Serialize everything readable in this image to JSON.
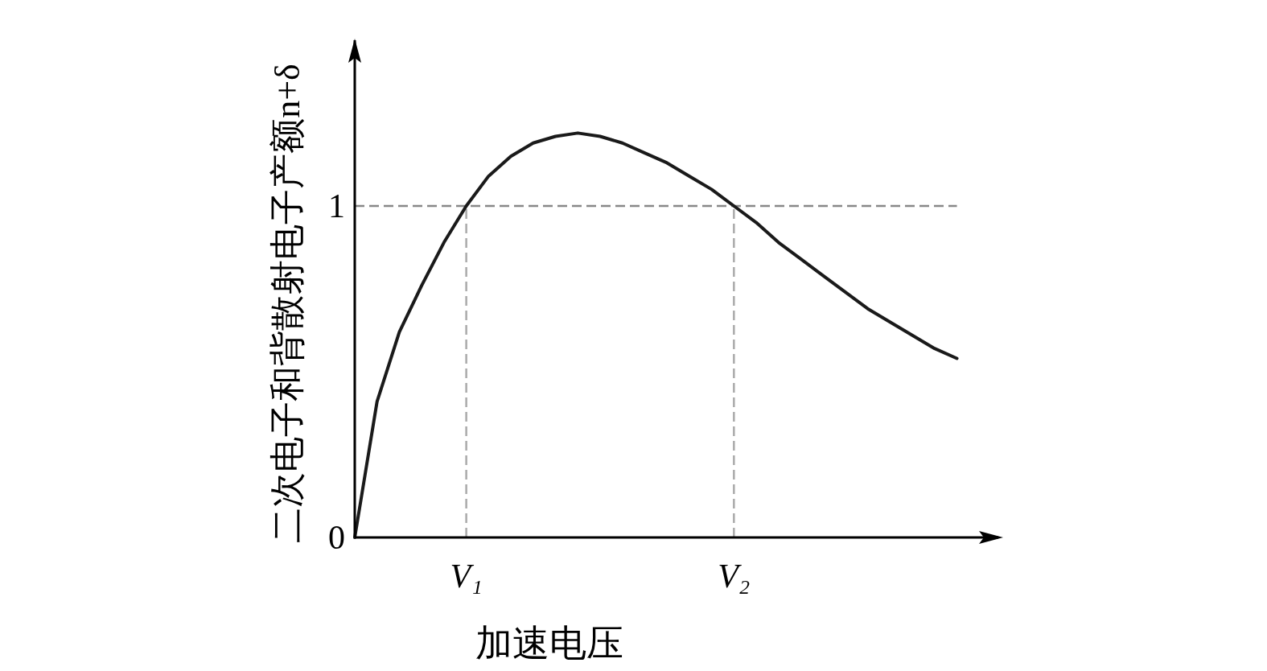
{
  "chart_data": {
    "type": "line",
    "ylabel": "二次电子和背散射电子产额n+δ",
    "xlabel": "加速电压",
    "categories": [
      null,
      null,
      null,
      null,
      null,
      "V₁",
      null,
      null,
      null,
      null,
      null,
      null,
      null,
      null,
      null,
      null,
      null,
      "V₂",
      null,
      null,
      null,
      null,
      null,
      null,
      null,
      null,
      null,
      null
    ],
    "series": [
      {
        "color": "#1a1a1a",
        "values": [
          0,
          0.41,
          0.62,
          0.76,
          0.89,
          1.0,
          1.09,
          1.15,
          1.19,
          1.21,
          1.22,
          1.21,
          1.19,
          1.16,
          1.13,
          1.09,
          1.05,
          1.0,
          0.95,
          0.89,
          0.84,
          0.79,
          0.74,
          0.69,
          0.65,
          0.61,
          0.57,
          0.54
        ]
      }
    ],
    "ylim": [
      0,
      1.5
    ],
    "yticks": [
      0,
      1
    ],
    "ref_lines": [
      {
        "axis": "y",
        "value": 1,
        "color": "#888888",
        "line_style": "dashed"
      },
      {
        "axis": "x",
        "value": "V₁",
        "color": "#aaaaaa",
        "line_style": "dashed"
      },
      {
        "axis": "x",
        "value": "V₂",
        "color": "#aaaaaa",
        "line_style": "dashed"
      }
    ],
    "line_style": "solid"
  }
}
